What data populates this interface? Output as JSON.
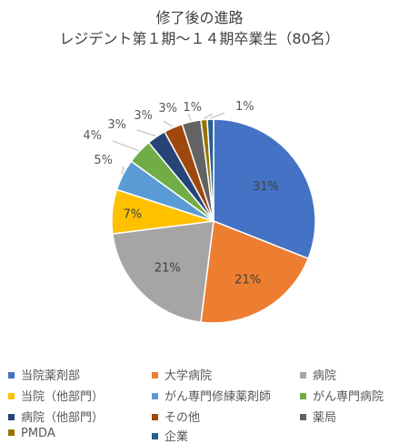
{
  "chart_data": {
    "type": "pie",
    "title_lines": [
      "修了後の進路",
      "レジデント第１期～１４期卒業生（80名）"
    ],
    "legend_position": "bottom",
    "slices": [
      {
        "label": "当院薬剤部",
        "value": 31,
        "value_label": "31%",
        "color": "#4472C4"
      },
      {
        "label": "大学病院",
        "value": 21,
        "value_label": "21%",
        "color": "#ED7D31"
      },
      {
        "label": "病院",
        "value": 21,
        "value_label": "21%",
        "color": "#A5A5A5"
      },
      {
        "label": "当院（他部門）",
        "value": 7,
        "value_label": "7%",
        "color": "#FFC000"
      },
      {
        "label": "がん専門修練薬剤師",
        "value": 5,
        "value_label": "5%",
        "color": "#5B9BD5"
      },
      {
        "label": "がん専門病院",
        "value": 4,
        "value_label": "4%",
        "color": "#70AD47"
      },
      {
        "label": "病院（他部門）",
        "value": 3,
        "value_label": "3%",
        "color": "#264478"
      },
      {
        "label": "その他",
        "value": 3,
        "value_label": "3%",
        "color": "#9E480E"
      },
      {
        "label": "薬局",
        "value": 3,
        "value_label": "3%",
        "color": "#636363"
      },
      {
        "label": "PMDA",
        "value": 1,
        "value_label": "1%",
        "color": "#997300"
      },
      {
        "label": "企業",
        "value": 1,
        "value_label": "1%",
        "color": "#255E91"
      }
    ]
  }
}
